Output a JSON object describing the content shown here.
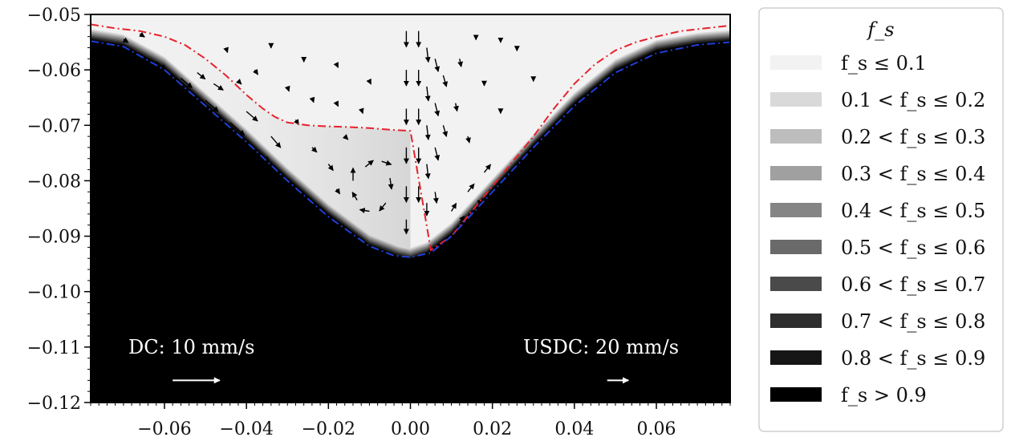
{
  "chart_data": {
    "type": "heatmap",
    "title": "",
    "xlabel": "",
    "ylabel": "",
    "xlim": [
      -0.078,
      0.078
    ],
    "ylim": [
      -0.12,
      -0.05
    ],
    "xticks": [
      "−0.06",
      "−0.04",
      "−0.02",
      "0.00",
      "0.02",
      "0.04",
      "0.06"
    ],
    "xtick_values": [
      -0.06,
      -0.04,
      -0.02,
      0.0,
      0.02,
      0.04,
      0.06
    ],
    "yticks": [
      "−0.05",
      "−0.06",
      "−0.07",
      "−0.08",
      "−0.09",
      "−0.10",
      "−0.11",
      "−0.12"
    ],
    "ytick_values": [
      -0.05,
      -0.06,
      -0.07,
      -0.08,
      -0.09,
      -0.1,
      -0.11,
      -0.12
    ],
    "grid": false,
    "legend_position": "right",
    "legend_title": "f_s",
    "legend": [
      {
        "label": "f_s ≤ 0.1",
        "color": "#f2f2f2"
      },
      {
        "label": "0.1 < f_s ≤ 0.2",
        "color": "#d9d9d9"
      },
      {
        "label": "0.2 < f_s ≤ 0.3",
        "color": "#bdbdbd"
      },
      {
        "label": "0.3 < f_s ≤ 0.4",
        "color": "#a0a0a0"
      },
      {
        "label": "0.4 < f_s ≤ 0.5",
        "color": "#858585"
      },
      {
        "label": "0.5 < f_s ≤ 0.6",
        "color": "#6a6a6a"
      },
      {
        "label": "0.6 < f_s ≤ 0.7",
        "color": "#4a4a4a"
      },
      {
        "label": "0.7 < f_s ≤ 0.8",
        "color": "#2e2e2e"
      },
      {
        "label": "0.8 < f_s ≤ 0.9",
        "color": "#161616"
      },
      {
        "label": "f_s > 0.9",
        "color": "#000000"
      }
    ],
    "annotations": [
      {
        "text": "DC: 10 mm/s",
        "x": -0.064,
        "y": -0.1115
      },
      {
        "text": "USDC: 20 mm/s",
        "x": 0.013,
        "y": -0.1115
      }
    ],
    "reference_arrows": [
      {
        "name": "dc-reference-arrow",
        "x": -0.058,
        "y": -0.116,
        "dx": 0.0115
      },
      {
        "name": "usdc-reference-arrow",
        "x": 0.048,
        "y": -0.116,
        "dx": 0.0052
      }
    ],
    "solidification_front": {
      "x": [
        -0.078,
        -0.07,
        -0.06,
        -0.05,
        -0.04,
        -0.03,
        -0.02,
        -0.01,
        -0.003,
        0.0,
        0.004,
        0.01,
        0.02,
        0.03,
        0.04,
        0.05,
        0.06,
        0.07,
        0.078
      ],
      "y": [
        -0.0545,
        -0.0555,
        -0.0595,
        -0.066,
        -0.0725,
        -0.0795,
        -0.086,
        -0.0915,
        -0.0935,
        -0.094,
        -0.093,
        -0.0895,
        -0.0815,
        -0.0735,
        -0.066,
        -0.06,
        -0.0565,
        -0.0552,
        -0.0547
      ]
    },
    "series": [
      {
        "color": "#e8212b",
        "style": "dash-dot",
        "x": [
          -0.078,
          -0.072,
          -0.066,
          -0.06,
          -0.055,
          -0.05,
          -0.045,
          -0.04,
          -0.036,
          -0.033,
          -0.03,
          -0.025,
          -0.02,
          -0.015,
          -0.01,
          -0.005,
          0.0,
          0.005,
          0.01,
          0.015,
          0.02,
          0.025,
          0.03,
          0.035,
          0.04,
          0.045,
          0.05,
          0.055,
          0.06,
          0.066,
          0.072,
          0.078
        ],
        "y": [
          -0.0518,
          -0.0525,
          -0.053,
          -0.054,
          -0.0555,
          -0.058,
          -0.061,
          -0.0645,
          -0.067,
          -0.0685,
          -0.0695,
          -0.07,
          -0.0702,
          -0.0703,
          -0.0705,
          -0.0708,
          -0.071,
          -0.0925,
          -0.09,
          -0.0855,
          -0.081,
          -0.0765,
          -0.072,
          -0.067,
          -0.0625,
          -0.059,
          -0.0565,
          -0.055,
          -0.054,
          -0.053,
          -0.0525,
          -0.052
        ]
      },
      {
        "color": "#1f3fd6",
        "style": "dash-dot",
        "x": [
          -0.078,
          -0.07,
          -0.06,
          -0.05,
          -0.04,
          -0.03,
          -0.02,
          -0.01,
          -0.004,
          0.0,
          0.005,
          0.01,
          0.02,
          0.03,
          0.04,
          0.05,
          0.06,
          0.07,
          0.078
        ],
        "y": [
          -0.0548,
          -0.0558,
          -0.06,
          -0.0665,
          -0.073,
          -0.08,
          -0.0865,
          -0.0918,
          -0.0935,
          -0.0938,
          -0.093,
          -0.09,
          -0.082,
          -0.074,
          -0.0665,
          -0.0605,
          -0.057,
          -0.0555,
          -0.055
        ]
      }
    ],
    "vectors": [
      {
        "x": -0.062,
        "y": -0.0585,
        "u": 0.6,
        "v": -0.5
      },
      {
        "x": -0.056,
        "y": -0.0615,
        "u": 0.7,
        "v": -0.6
      },
      {
        "x": -0.05,
        "y": -0.0655,
        "u": 0.8,
        "v": -0.7
      },
      {
        "x": -0.044,
        "y": -0.0695,
        "u": 0.9,
        "v": -0.8
      },
      {
        "x": -0.038,
        "y": -0.074,
        "u": 0.9,
        "v": -0.9
      },
      {
        "x": -0.032,
        "y": -0.0785,
        "u": 0.8,
        "v": -0.9
      },
      {
        "x": -0.026,
        "y": -0.0825,
        "u": 0.7,
        "v": -0.9
      },
      {
        "x": -0.058,
        "y": -0.064,
        "u": 0.5,
        "v": -0.6
      },
      {
        "x": -0.048,
        "y": -0.0625,
        "u": 0.6,
        "v": -0.4
      },
      {
        "x": -0.052,
        "y": -0.0605,
        "u": 0.5,
        "v": -0.4
      },
      {
        "x": -0.04,
        "y": -0.0675,
        "u": 0.7,
        "v": -0.6
      },
      {
        "x": -0.034,
        "y": -0.072,
        "u": 0.6,
        "v": -0.7
      },
      {
        "x": -0.014,
        "y": -0.08,
        "u": 0.0,
        "v": 0.8
      },
      {
        "x": -0.011,
        "y": -0.0775,
        "u": 0.5,
        "v": 0.4
      },
      {
        "x": -0.007,
        "y": -0.0765,
        "u": 0.6,
        "v": -0.2
      },
      {
        "x": -0.005,
        "y": -0.0795,
        "u": 0.1,
        "v": -0.7
      },
      {
        "x": -0.006,
        "y": -0.084,
        "u": -0.4,
        "v": -0.5
      },
      {
        "x": -0.01,
        "y": -0.0855,
        "u": -0.6,
        "v": 0.1
      },
      {
        "x": -0.013,
        "y": -0.0835,
        "u": -0.3,
        "v": 0.5
      },
      {
        "x": -0.018,
        "y": -0.0815,
        "u": 0.2,
        "v": -0.3
      },
      {
        "x": -0.02,
        "y": -0.077,
        "u": 0.3,
        "v": -0.4
      },
      {
        "x": -0.024,
        "y": -0.074,
        "u": 0.3,
        "v": -0.3
      },
      {
        "x": -0.028,
        "y": -0.069,
        "u": 0.2,
        "v": -0.3
      },
      {
        "x": -0.016,
        "y": -0.072,
        "u": 0.2,
        "v": -0.2
      },
      {
        "x": -0.001,
        "y": -0.053,
        "u": 0.0,
        "v": -1.0
      },
      {
        "x": -0.001,
        "y": -0.06,
        "u": 0.0,
        "v": -1.0
      },
      {
        "x": -0.001,
        "y": -0.067,
        "u": 0.0,
        "v": -1.0
      },
      {
        "x": -0.001,
        "y": -0.074,
        "u": 0.0,
        "v": -1.0
      },
      {
        "x": -0.001,
        "y": -0.081,
        "u": 0.0,
        "v": -1.0
      },
      {
        "x": -0.001,
        "y": -0.087,
        "u": 0.0,
        "v": -0.9
      },
      {
        "x": 0.002,
        "y": -0.053,
        "u": 0.0,
        "v": -1.0
      },
      {
        "x": 0.002,
        "y": -0.06,
        "u": 0.0,
        "v": -1.0
      },
      {
        "x": 0.002,
        "y": -0.067,
        "u": 0.0,
        "v": -1.0
      },
      {
        "x": 0.002,
        "y": -0.074,
        "u": 0.0,
        "v": -1.0
      },
      {
        "x": 0.002,
        "y": -0.081,
        "u": 0.0,
        "v": -1.0
      },
      {
        "x": 0.004,
        "y": -0.056,
        "u": 0.1,
        "v": -0.9
      },
      {
        "x": 0.004,
        "y": -0.063,
        "u": 0.1,
        "v": -0.9
      },
      {
        "x": 0.004,
        "y": -0.07,
        "u": 0.1,
        "v": -0.9
      },
      {
        "x": 0.004,
        "y": -0.077,
        "u": 0.1,
        "v": -0.9
      },
      {
        "x": 0.006,
        "y": -0.058,
        "u": 0.2,
        "v": -0.8
      },
      {
        "x": 0.006,
        "y": -0.066,
        "u": 0.2,
        "v": -0.8
      },
      {
        "x": 0.006,
        "y": -0.074,
        "u": 0.2,
        "v": -0.8
      },
      {
        "x": 0.008,
        "y": -0.061,
        "u": 0.2,
        "v": -0.7
      },
      {
        "x": 0.008,
        "y": -0.07,
        "u": 0.2,
        "v": -0.7
      },
      {
        "x": 0.004,
        "y": -0.084,
        "u": 0.0,
        "v": -0.8
      },
      {
        "x": 0.006,
        "y": -0.082,
        "u": 0.1,
        "v": -0.7
      },
      {
        "x": 0.01,
        "y": -0.0855,
        "u": 0.3,
        "v": 0.5
      },
      {
        "x": 0.014,
        "y": -0.082,
        "u": 0.4,
        "v": 0.5
      },
      {
        "x": 0.018,
        "y": -0.0785,
        "u": 0.4,
        "v": 0.5
      },
      {
        "x": 0.012,
        "y": -0.0875,
        "u": 0.3,
        "v": 0.4
      },
      {
        "x": 0.016,
        "y": -0.0845,
        "u": 0.4,
        "v": 0.4
      },
      {
        "x": 0.011,
        "y": -0.066,
        "u": 0.1,
        "v": -0.5
      },
      {
        "x": 0.014,
        "y": -0.072,
        "u": 0.1,
        "v": -0.4
      },
      {
        "x": 0.012,
        "y": -0.058,
        "u": 0.1,
        "v": -0.5
      },
      {
        "x": -0.066,
        "y": -0.0535,
        "u": 0.3,
        "v": -0.2
      },
      {
        "x": -0.07,
        "y": -0.0545,
        "u": 0.3,
        "v": -0.2
      },
      {
        "x": -0.045,
        "y": -0.056,
        "u": 0.1,
        "v": -0.3
      },
      {
        "x": -0.038,
        "y": -0.06,
        "u": 0.2,
        "v": -0.3
      },
      {
        "x": -0.03,
        "y": -0.063,
        "u": 0.1,
        "v": -0.3
      },
      {
        "x": -0.024,
        "y": -0.065,
        "u": 0.1,
        "v": -0.3
      },
      {
        "x": -0.018,
        "y": -0.066,
        "u": 0.1,
        "v": -0.2
      },
      {
        "x": -0.012,
        "y": -0.067,
        "u": 0.1,
        "v": -0.3
      },
      {
        "x": -0.026,
        "y": -0.058,
        "u": 0.0,
        "v": -0.2
      },
      {
        "x": -0.018,
        "y": -0.059,
        "u": 0.1,
        "v": -0.2
      },
      {
        "x": -0.01,
        "y": -0.062,
        "u": 0.1,
        "v": -0.2
      },
      {
        "x": -0.034,
        "y": -0.0555,
        "u": 0.0,
        "v": -0.2
      },
      {
        "x": -0.042,
        "y": -0.062,
        "u": 0.2,
        "v": -0.2
      },
      {
        "x": 0.018,
        "y": -0.062,
        "u": 0.0,
        "v": -0.3
      },
      {
        "x": 0.022,
        "y": -0.067,
        "u": 0.0,
        "v": -0.3
      },
      {
        "x": 0.026,
        "y": -0.056,
        "u": 0.0,
        "v": -0.2
      },
      {
        "x": 0.022,
        "y": -0.0545,
        "u": 0.0,
        "v": -0.2
      },
      {
        "x": 0.016,
        "y": -0.054,
        "u": 0.0,
        "v": -0.2
      },
      {
        "x": 0.03,
        "y": -0.0615,
        "u": 0.0,
        "v": -0.2
      }
    ]
  }
}
